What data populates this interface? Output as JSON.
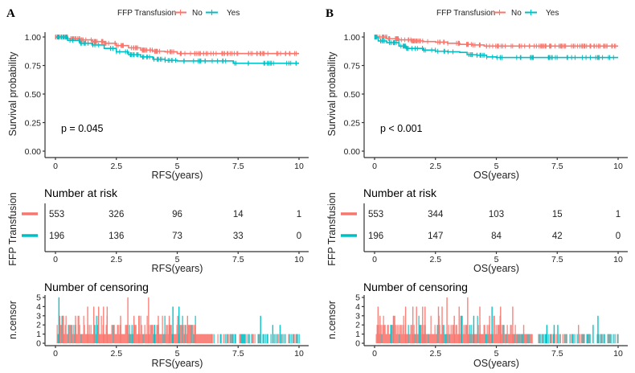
{
  "colors": {
    "no": "#F8766D",
    "yes": "#00BFC4"
  },
  "chart_data": [
    {
      "panel": "A",
      "type": "line",
      "subtype": "kaplan-meier",
      "legend": {
        "title": "FFP Transfusion",
        "entries": [
          "No",
          "Yes"
        ],
        "placement": "top"
      },
      "xlabel": "RFS(years)",
      "ylabel": "Survival probability",
      "xlim": [
        0,
        10
      ],
      "ylim": [
        0,
        1
      ],
      "xticks": [
        "0",
        "2.5",
        "5",
        "7.5",
        "10"
      ],
      "yticks": [
        "0.00",
        "0.25",
        "0.50",
        "0.75",
        "1.00"
      ],
      "pvalue": "p = 0.045",
      "series": [
        {
          "name": "No",
          "x": [
            0,
            0.5,
            1,
            1.5,
            2,
            2.5,
            3,
            3.5,
            4,
            4.5,
            5,
            5.8,
            7.5,
            10
          ],
          "y": [
            1.0,
            0.985,
            0.975,
            0.96,
            0.945,
            0.925,
            0.905,
            0.885,
            0.875,
            0.87,
            0.855,
            0.855,
            0.855,
            0.855
          ]
        },
        {
          "name": "Yes",
          "x": [
            0,
            0.5,
            1,
            1.5,
            2,
            2.5,
            3,
            3.5,
            4,
            4.5,
            5,
            6,
            7,
            7.3,
            10
          ],
          "y": [
            1.0,
            0.97,
            0.945,
            0.93,
            0.9,
            0.87,
            0.845,
            0.825,
            0.805,
            0.795,
            0.79,
            0.79,
            0.79,
            0.77,
            0.77
          ]
        }
      ],
      "risk_table": {
        "title": "Number at risk",
        "ylabel": "FFP Transfusion",
        "xlabel": "RFS(years)",
        "times": [
          "0",
          "2.5",
          "5",
          "7.5",
          "10"
        ],
        "rows": [
          {
            "group": "No",
            "values": [
              "553",
              "326",
              "96",
              "14",
              "1"
            ]
          },
          {
            "group": "Yes",
            "values": [
              "196",
              "136",
              "73",
              "33",
              "0"
            ]
          }
        ]
      },
      "censor_plot": {
        "title": "Number of censoring",
        "ylabel": "n.censor",
        "xlabel": "RFS(years)",
        "yticks": [
          "0",
          "1",
          "2",
          "3",
          "4",
          "5"
        ],
        "ylim": [
          0,
          5
        ],
        "no_peaks": [
          [
            0.15,
            3
          ],
          [
            0.3,
            3
          ],
          [
            0.8,
            3
          ],
          [
            1.3,
            4
          ],
          [
            1.55,
            4
          ],
          [
            1.75,
            4
          ],
          [
            1.95,
            4
          ],
          [
            2.1,
            4
          ],
          [
            2.65,
            3
          ],
          [
            2.95,
            5
          ],
          [
            3.2,
            3
          ],
          [
            3.4,
            3
          ],
          [
            3.8,
            5
          ],
          [
            4.2,
            3
          ],
          [
            4.65,
            3
          ],
          [
            5.0,
            3
          ],
          [
            5.4,
            3
          ],
          [
            5.7,
            2
          ],
          [
            6.4,
            1
          ]
        ],
        "yes_peaks": [
          [
            0.12,
            5
          ],
          [
            4.05,
            2
          ],
          [
            4.8,
            4
          ],
          [
            5.05,
            4
          ],
          [
            8.4,
            3
          ],
          [
            8.9,
            2
          ],
          [
            9.2,
            2
          ]
        ]
      }
    },
    {
      "panel": "B",
      "type": "line",
      "subtype": "kaplan-meier",
      "legend": {
        "title": "FFP Transfusion",
        "entries": [
          "No",
          "Yes"
        ],
        "placement": "top"
      },
      "xlabel": "OS(years)",
      "ylabel": "Survival probability",
      "xlim": [
        0,
        10
      ],
      "ylim": [
        0,
        1
      ],
      "xticks": [
        "0",
        "2.5",
        "5",
        "7.5",
        "10"
      ],
      "yticks": [
        "0.00",
        "0.25",
        "0.50",
        "0.75",
        "1.00"
      ],
      "pvalue": "p < 0.001",
      "series": [
        {
          "name": "No",
          "x": [
            0,
            0.5,
            1,
            1.5,
            2,
            2.5,
            3,
            3.5,
            4,
            4.5,
            5,
            10
          ],
          "y": [
            1.0,
            0.985,
            0.975,
            0.965,
            0.96,
            0.955,
            0.945,
            0.935,
            0.93,
            0.92,
            0.92,
            0.92
          ]
        },
        {
          "name": "Yes",
          "x": [
            0,
            0.15,
            0.5,
            1,
            1.3,
            2,
            2.5,
            3,
            3.5,
            3.8,
            4.2,
            4.6,
            5,
            10
          ],
          "y": [
            1.0,
            0.965,
            0.95,
            0.92,
            0.9,
            0.885,
            0.875,
            0.87,
            0.865,
            0.845,
            0.84,
            0.825,
            0.82,
            0.82
          ]
        }
      ],
      "risk_table": {
        "title": "Number at risk",
        "ylabel": "FFP Transfusion",
        "xlabel": "OS(years)",
        "times": [
          "0",
          "2.5",
          "5",
          "7.5",
          "10"
        ],
        "rows": [
          {
            "group": "No",
            "values": [
              "553",
              "344",
              "103",
              "15",
              "1"
            ]
          },
          {
            "group": "Yes",
            "values": [
              "196",
              "147",
              "84",
              "42",
              "0"
            ]
          }
        ]
      },
      "censor_plot": {
        "title": "Number of censoring",
        "ylabel": "n.censor",
        "xlabel": "OS(years)",
        "yticks": [
          "0",
          "1",
          "2",
          "3",
          "4",
          "5"
        ],
        "ylim": [
          0,
          5
        ],
        "no_peaks": [
          [
            0.12,
            4
          ],
          [
            0.2,
            3
          ],
          [
            0.75,
            3
          ],
          [
            1.25,
            4
          ],
          [
            1.55,
            4
          ],
          [
            1.7,
            4
          ],
          [
            1.95,
            4
          ],
          [
            2.05,
            4
          ],
          [
            2.6,
            4
          ],
          [
            2.75,
            4
          ],
          [
            2.95,
            5
          ],
          [
            3.25,
            3
          ],
          [
            3.45,
            4
          ],
          [
            3.8,
            5
          ],
          [
            4.3,
            4
          ],
          [
            4.7,
            3
          ],
          [
            5.15,
            4
          ],
          [
            5.65,
            4
          ],
          [
            6.1,
            2
          ],
          [
            8.35,
            2
          ]
        ],
        "yes_peaks": [
          [
            0.65,
            2
          ],
          [
            3.55,
            3
          ],
          [
            4.05,
            3
          ],
          [
            4.8,
            4
          ],
          [
            7.05,
            2
          ],
          [
            7.35,
            2
          ],
          [
            7.5,
            2
          ],
          [
            9.15,
            3
          ],
          [
            8.95,
            2
          ]
        ]
      }
    }
  ]
}
